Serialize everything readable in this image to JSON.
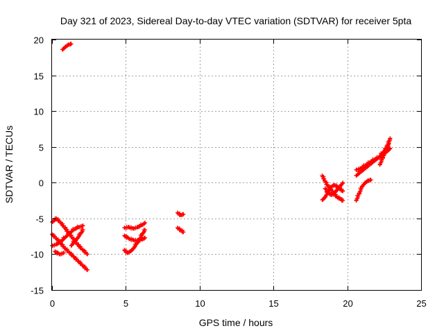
{
  "chart_data": {
    "type": "scatter",
    "title": "Day 321 of 2023, Sidereal Day-to-day VTEC variation (SDTVAR) for receiver 5pta",
    "xlabel": "GPS time / hours",
    "ylabel": "SDTVAR / TECUs",
    "xlim": [
      0,
      25
    ],
    "ylim": [
      -15,
      20
    ],
    "xticks": [
      "0",
      "5",
      "10",
      "15",
      "20",
      "25"
    ],
    "yticks": [
      "-15",
      "-10",
      "-5",
      "0",
      "5",
      "10",
      "15",
      "20"
    ],
    "grid": true,
    "marker": "plus",
    "color": "#ff0000",
    "series": [
      {
        "name": "SDTVAR",
        "segments": [
          {
            "t": [
              0.0,
              0.3,
              0.6,
              0.9,
              1.2,
              1.5,
              1.8,
              2.1,
              2.4
            ],
            "v": [
              -5.5,
              -5.0,
              -5.6,
              -6.4,
              -7.2,
              -8.0,
              -8.8,
              -9.4,
              -10.0
            ]
          },
          {
            "t": [
              0.0,
              0.3,
              0.6,
              0.9,
              1.2,
              1.5,
              1.8,
              2.1,
              2.4
            ],
            "v": [
              -7.2,
              -7.8,
              -8.5,
              -9.2,
              -9.8,
              -10.4,
              -11.0,
              -11.6,
              -12.2
            ]
          },
          {
            "t": [
              0.0,
              0.3,
              0.6,
              0.9,
              1.2,
              1.5,
              1.8,
              2.1
            ],
            "v": [
              -8.8,
              -8.6,
              -8.2,
              -7.6,
              -7.0,
              -6.5,
              -6.2,
              -6.0
            ]
          },
          {
            "t": [
              0.2,
              0.5,
              0.8
            ],
            "v": [
              -9.6,
              -10.0,
              -9.8
            ]
          },
          {
            "t": [
              1.3,
              1.5,
              1.7,
              1.9,
              2.1
            ],
            "v": [
              -8.8,
              -8.2,
              -7.8,
              -7.2,
              -6.6
            ]
          },
          {
            "t": [
              0.7,
              0.9,
              1.1,
              1.3
            ],
            "v": [
              18.6,
              19.0,
              19.3,
              19.4
            ]
          },
          {
            "t": [
              4.9,
              5.2,
              5.5,
              5.8,
              6.1,
              6.3
            ],
            "v": [
              -7.4,
              -7.8,
              -8.0,
              -8.1,
              -7.9,
              -7.7
            ]
          },
          {
            "t": [
              4.9,
              5.2,
              5.5,
              5.8,
              6.1,
              6.3
            ],
            "v": [
              -6.3,
              -6.2,
              -6.4,
              -6.2,
              -5.9,
              -5.6
            ]
          },
          {
            "t": [
              4.9,
              5.1,
              5.3,
              5.5,
              5.7,
              5.9,
              6.1,
              6.3
            ],
            "v": [
              -9.4,
              -9.8,
              -9.6,
              -9.2,
              -8.6,
              -8.0,
              -7.2,
              -6.6
            ]
          },
          {
            "t": [
              8.5,
              8.7,
              8.9
            ],
            "v": [
              -4.2,
              -4.5,
              -4.4
            ]
          },
          {
            "t": [
              8.5,
              8.7,
              8.9
            ],
            "v": [
              -6.3,
              -6.6,
              -6.9
            ]
          },
          {
            "t": [
              18.3,
              18.5,
              18.7,
              18.9,
              19.1,
              19.3,
              19.5,
              19.7
            ],
            "v": [
              1.0,
              0.2,
              -0.5,
              -1.0,
              -1.5,
              -2.0,
              -2.2,
              -2.5
            ]
          },
          {
            "t": [
              18.3,
              18.5,
              18.7,
              18.9,
              19.1,
              19.3,
              19.5,
              19.7
            ],
            "v": [
              -2.4,
              -2.0,
              -1.2,
              -0.6,
              -0.3,
              -0.5,
              -0.8,
              -1.2
            ]
          },
          {
            "t": [
              18.5,
              18.7,
              18.9,
              19.1,
              19.3,
              19.5,
              19.7
            ],
            "v": [
              -0.8,
              -1.3,
              -1.7,
              -1.5,
              -1.0,
              -0.5,
              0.0
            ]
          },
          {
            "t": [
              20.6,
              20.9,
              21.2,
              21.5,
              21.8,
              22.1,
              22.4,
              22.7,
              22.9
            ],
            "v": [
              1.0,
              1.5,
              2.0,
              2.5,
              3.0,
              3.5,
              4.2,
              5.0,
              6.2
            ]
          },
          {
            "t": [
              20.6,
              20.9,
              21.2,
              21.5,
              21.8,
              22.1,
              22.4,
              22.7,
              22.9
            ],
            "v": [
              1.8,
              2.0,
              2.4,
              2.8,
              3.2,
              3.5,
              3.9,
              4.4,
              4.8
            ]
          },
          {
            "t": [
              20.6,
              20.8,
              21.0,
              21.2,
              21.4,
              21.6
            ],
            "v": [
              -2.5,
              -1.5,
              -0.5,
              0.0,
              0.3,
              0.4
            ]
          },
          {
            "t": [
              22.2,
              22.4,
              22.6,
              22.8
            ],
            "v": [
              2.5,
              3.5,
              4.5,
              5.5
            ]
          }
        ]
      }
    ]
  }
}
